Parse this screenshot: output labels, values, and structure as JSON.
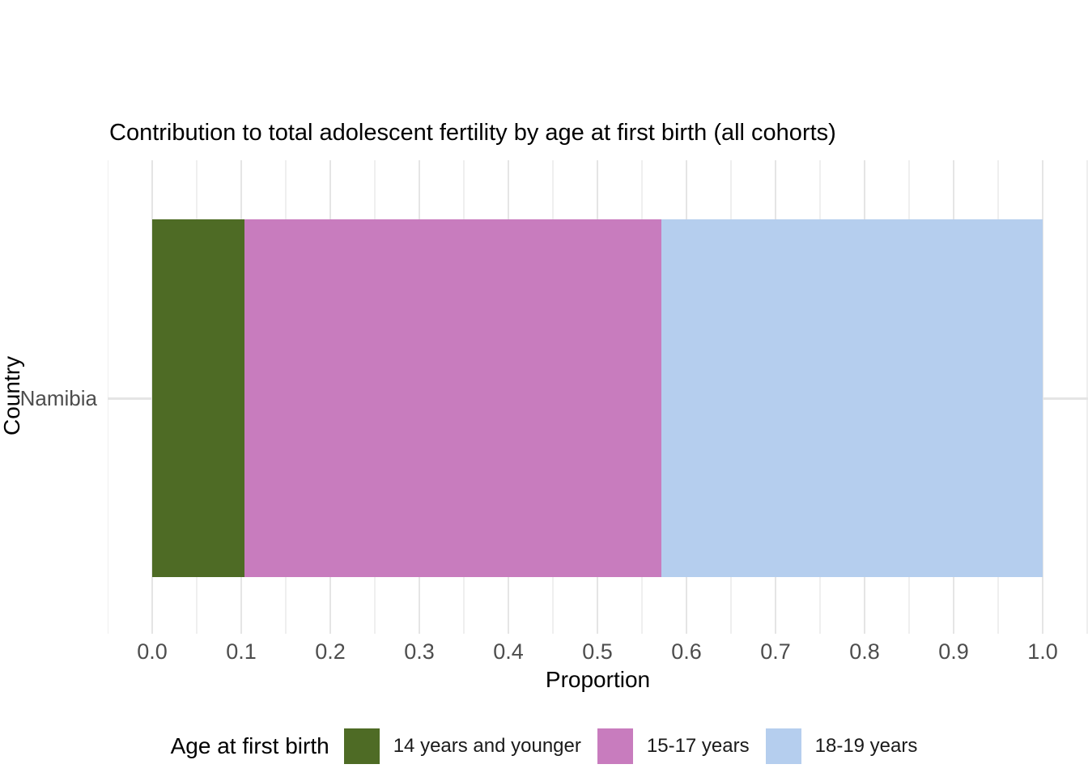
{
  "chart_data": {
    "type": "bar",
    "orientation": "horizontal",
    "stacked": true,
    "title": "Contribution to total adolescent fertility by age at first birth (all cohorts)",
    "xlabel": "Proportion",
    "ylabel": "Country",
    "categories": [
      "Namibia"
    ],
    "series": [
      {
        "name": "14 years and younger",
        "values": [
          0.104
        ],
        "color": "#4e6b25"
      },
      {
        "name": "15-17 years",
        "values": [
          0.468
        ],
        "color": "#c87cbe"
      },
      {
        "name": "18-19 years",
        "values": [
          0.428
        ],
        "color": "#b5ceee"
      }
    ],
    "xlim": [
      0.0,
      1.0
    ],
    "x_ticks": [
      "0.0",
      "0.1",
      "0.2",
      "0.3",
      "0.4",
      "0.5",
      "0.6",
      "0.7",
      "0.8",
      "0.9",
      "1.0"
    ],
    "grid": "vertical major ticks 0.1 with minor 0.05, horizontal line at category; light gray on white",
    "legend_title": "Age at first birth",
    "legend_position": "bottom"
  },
  "colors": {
    "grid_major": "#e5e5e5",
    "grid_minor": "#efefef",
    "tick_label": "#4d4d4d",
    "title_text": "#000000",
    "background": "#ffffff"
  }
}
